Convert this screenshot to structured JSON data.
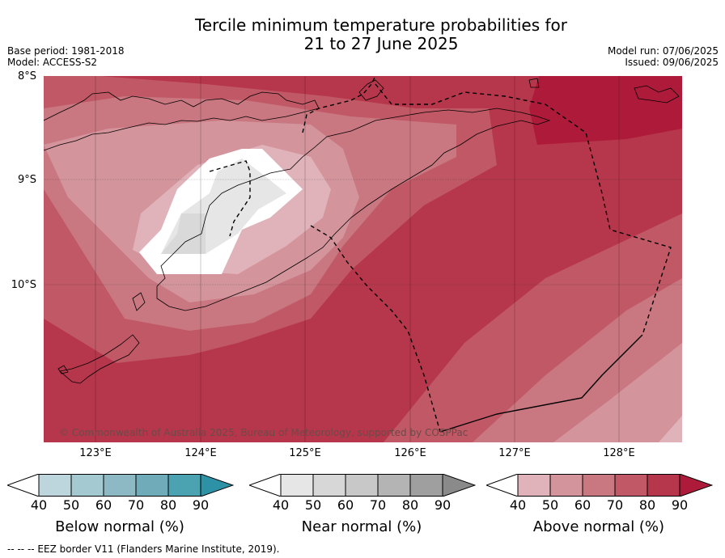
{
  "title": {
    "line1": "Tercile minimum temperature probabilities for",
    "line2": "21 to 27 June 2025"
  },
  "meta": {
    "base_period": "Base period: 1981-2018",
    "model": "Model: ACCESS-S2",
    "model_run": "Model run: 07/06/2025",
    "issued": "Issued: 09/06/2025"
  },
  "axes": {
    "latitudes": [
      "8°S",
      "9°S",
      "10°S"
    ],
    "longitudes": [
      "123°E",
      "124°E",
      "125°E",
      "126°E",
      "127°E",
      "128°E"
    ]
  },
  "copyright": "© Commonwealth of Australia 2025, Bureau of Meteorology, supported by COSPPac",
  "legends": {
    "ticks": [
      "40",
      "50",
      "60",
      "70",
      "80",
      "90"
    ],
    "below": {
      "label": "Below normal (%)",
      "colors": [
        "#bdd5dc",
        "#a5c9d0",
        "#8cb9c3",
        "#6fabb8",
        "#4ba2b1",
        "#2d92a5"
      ]
    },
    "near": {
      "label": "Near normal (%)",
      "colors": [
        "#e6e6e6",
        "#d7d7d7",
        "#c8c8c8",
        "#b4b4b4",
        "#9f9f9f",
        "#8a8a8a"
      ]
    },
    "above": {
      "label": "Above normal (%)",
      "colors": [
        "#e0b3ba",
        "#d3949c",
        "#c97780",
        "#c15866",
        "#b6374b",
        "#ae1b3a"
      ]
    }
  },
  "eez_note": "--  --  -- EEZ border V11 (Flanders Marine Institute, 2019).",
  "map_colors": {
    "above_40": "#e0b3ba",
    "above_50": "#d3949c",
    "above_60": "#c97780",
    "above_70": "#c15866",
    "above_80": "#b6374b",
    "above_90": "#ae1b3a",
    "white": "#ffffff",
    "near_40": "#e6e6e6",
    "near_gray": "#d9d9d9"
  }
}
